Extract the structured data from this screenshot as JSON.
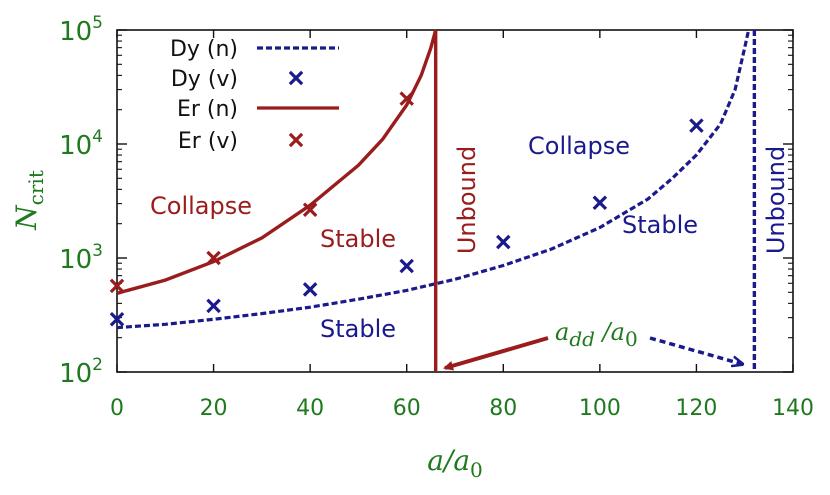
{
  "chart_data": {
    "type": "line",
    "xlabel": "a/a0",
    "ylabel": "N_crit",
    "xlim": [
      0,
      140
    ],
    "ylim": [
      100,
      100000
    ],
    "yscale": "log",
    "xticks": [
      0,
      20,
      40,
      60,
      80,
      100,
      120,
      140
    ],
    "yticks": [
      {
        "value": 100,
        "base": "10",
        "exp": "2"
      },
      {
        "value": 1000,
        "base": "10",
        "exp": "3"
      },
      {
        "value": 10000,
        "base": "10",
        "exp": "4"
      },
      {
        "value": 100000,
        "base": "10",
        "exp": "5"
      }
    ],
    "grid": false,
    "legend_position": "top-left",
    "series": [
      {
        "name": "Dy (n)",
        "kind": "dashed-line",
        "color": "#1a1a8c",
        "points": [
          [
            0,
            245
          ],
          [
            10,
            262
          ],
          [
            20,
            290
          ],
          [
            30,
            325
          ],
          [
            40,
            370
          ],
          [
            50,
            435
          ],
          [
            60,
            520
          ],
          [
            70,
            650
          ],
          [
            80,
            860
          ],
          [
            90,
            1200
          ],
          [
            100,
            1850
          ],
          [
            110,
            3300
          ],
          [
            115,
            5000
          ],
          [
            120,
            8000
          ],
          [
            125,
            15000
          ],
          [
            128,
            30000
          ],
          [
            130,
            70000
          ],
          [
            130.8,
            100000
          ]
        ]
      },
      {
        "name": "Dy (v)",
        "kind": "markers",
        "marker": "x",
        "color": "#1a1a8c",
        "points": [
          [
            0,
            290
          ],
          [
            20,
            380
          ],
          [
            40,
            530
          ],
          [
            60,
            850
          ],
          [
            80,
            1380
          ],
          [
            100,
            3050
          ],
          [
            120,
            14500
          ]
        ]
      },
      {
        "name": "Er (n)",
        "kind": "solid-line",
        "color": "#9b1c1c",
        "points": [
          [
            0,
            490
          ],
          [
            10,
            640
          ],
          [
            20,
            930
          ],
          [
            30,
            1500
          ],
          [
            40,
            2900
          ],
          [
            50,
            6500
          ],
          [
            55,
            11000
          ],
          [
            60,
            22000
          ],
          [
            63,
            40000
          ],
          [
            65,
            70000
          ],
          [
            66,
            100000
          ]
        ]
      },
      {
        "name": "Er (v)",
        "kind": "markers",
        "marker": "x",
        "color": "#9b1c1c",
        "points": [
          [
            0,
            570
          ],
          [
            20,
            1000
          ],
          [
            40,
            2650
          ],
          [
            60,
            25000
          ]
        ]
      }
    ],
    "vertical_lines": [
      {
        "x": 66,
        "color": "#9b1c1c",
        "label": "Unbound"
      },
      {
        "x": 132,
        "color": "#1a1a8c",
        "label": "Unbound"
      }
    ],
    "annotations": [
      {
        "text": "Collapse",
        "color": "#9b1c1c"
      },
      {
        "text": "Stable",
        "color": "#9b1c1c"
      },
      {
        "text": "Collapse",
        "color": "#1a1a8c"
      },
      {
        "text": "Stable",
        "color": "#1a1a8c"
      },
      {
        "text": "Stable",
        "color": "#1a1a8c"
      }
    ],
    "add_annotation": {
      "text_main": "a",
      "sub1": "dd",
      "mid": " /a",
      "sub2": "0",
      "color": "#1f7a1f"
    }
  },
  "colors": {
    "axis_text": "#1f7a1f",
    "dy": "#1a1a8c",
    "er": "#9b1c1c",
    "frame": "#111111"
  }
}
